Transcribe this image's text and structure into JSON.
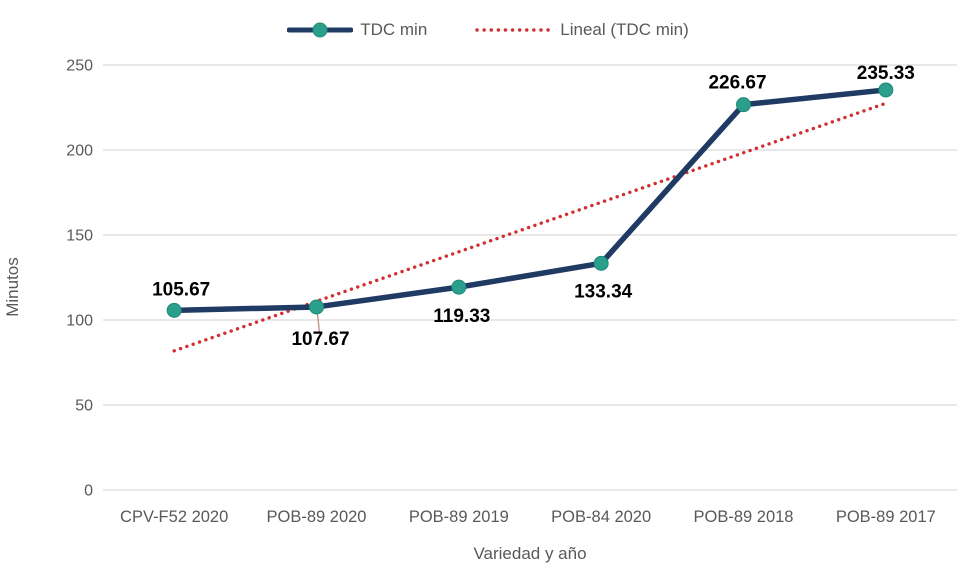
{
  "chart_data": {
    "type": "line",
    "categories": [
      "CPV-F52 2020",
      "POB-89 2020",
      "POB-89 2019",
      "POB-84 2020",
      "POB-89 2018",
      "POB-89 2017"
    ],
    "series": [
      {
        "name": "TDC min",
        "values": [
          105.67,
          107.67,
          119.33,
          133.34,
          226.67,
          235.33
        ]
      }
    ],
    "data_labels": [
      "105.67",
      "107.67",
      "119.33",
      "133.34",
      "226.67",
      "235.33"
    ],
    "trendline": {
      "name": "Lineal (TDC min)",
      "kind": "linear"
    },
    "xlabel": "Variedad y año",
    "ylabel": "Minutos",
    "ylim": [
      0,
      250
    ],
    "yticks": [
      0,
      50,
      100,
      150,
      200,
      250
    ],
    "grid": true,
    "legend_position": "top",
    "colors": {
      "series_line": "#1f3a63",
      "marker": "#2aa08c",
      "marker_edge": "#1f8a7b",
      "trendline": "#d13032",
      "gridline": "#d9d9d9",
      "axis_text": "#595959",
      "data_label": "#000000",
      "leader_line": "#bc8e86"
    }
  }
}
